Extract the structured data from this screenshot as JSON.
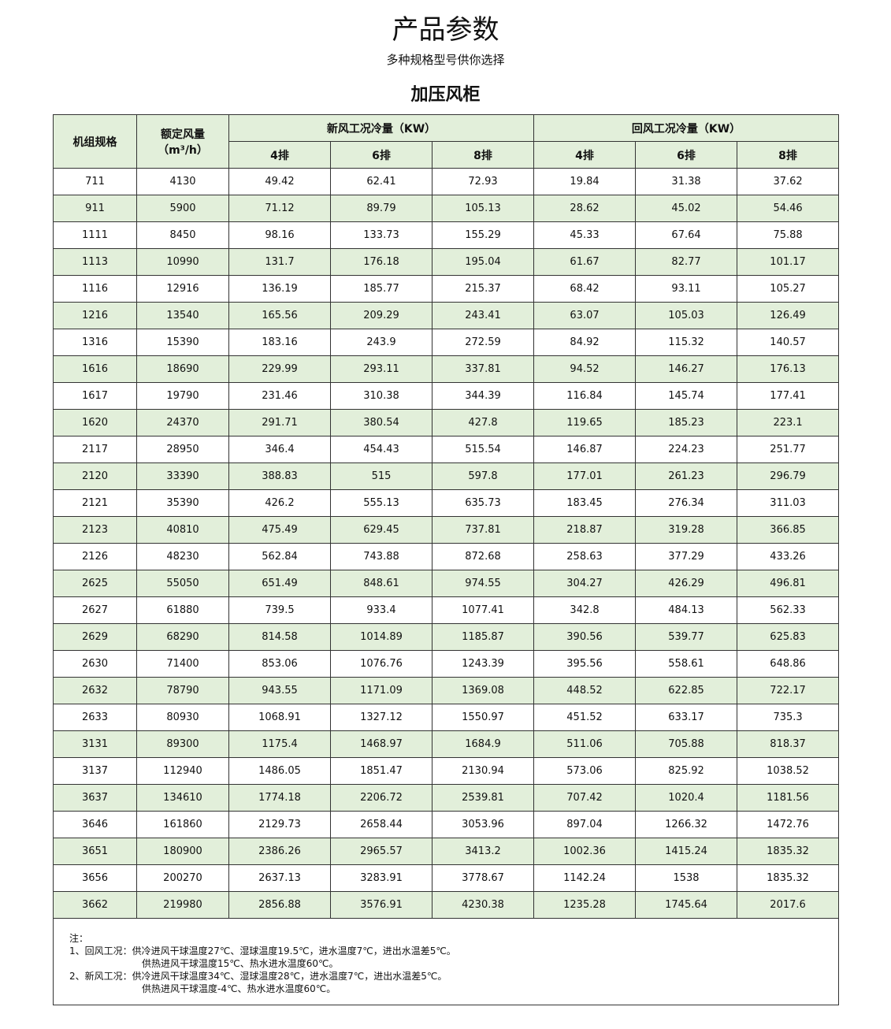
{
  "header": {
    "title": "产品参数",
    "subtitle": "多种规格型号供你选择"
  },
  "table": {
    "title": "加压风柜",
    "model_header": "机组规格",
    "airflow_header": [
      "额定风量",
      "（m³/h）"
    ],
    "groups": [
      "新风工况冷量（KW）",
      "回风工况冷量（KW）"
    ],
    "subheaders": [
      "4排",
      "6排",
      "8排",
      "4排",
      "6排",
      "8排"
    ],
    "rows": [
      [
        "711",
        "4130",
        "49.42",
        "62.41",
        "72.93",
        "19.84",
        "31.38",
        "37.62"
      ],
      [
        "911",
        "5900",
        "71.12",
        "89.79",
        "105.13",
        "28.62",
        "45.02",
        "54.46"
      ],
      [
        "1111",
        "8450",
        "98.16",
        "133.73",
        "155.29",
        "45.33",
        "67.64",
        "75.88"
      ],
      [
        "1113",
        "10990",
        "131.7",
        "176.18",
        "195.04",
        "61.67",
        "82.77",
        "101.17"
      ],
      [
        "1116",
        "12916",
        "136.19",
        "185.77",
        "215.37",
        "68.42",
        "93.11",
        "105.27"
      ],
      [
        "1216",
        "13540",
        "165.56",
        "209.29",
        "243.41",
        "63.07",
        "105.03",
        "126.49"
      ],
      [
        "1316",
        "15390",
        "183.16",
        "243.9",
        "272.59",
        "84.92",
        "115.32",
        "140.57"
      ],
      [
        "1616",
        "18690",
        "229.99",
        "293.11",
        "337.81",
        "94.52",
        "146.27",
        "176.13"
      ],
      [
        "1617",
        "19790",
        "231.46",
        "310.38",
        "344.39",
        "116.84",
        "145.74",
        "177.41"
      ],
      [
        "1620",
        "24370",
        "291.71",
        "380.54",
        "427.8",
        "119.65",
        "185.23",
        "223.1"
      ],
      [
        "2117",
        "28950",
        "346.4",
        "454.43",
        "515.54",
        "146.87",
        "224.23",
        "251.77"
      ],
      [
        "2120",
        "33390",
        "388.83",
        "515",
        "597.8",
        "177.01",
        "261.23",
        "296.79"
      ],
      [
        "2121",
        "35390",
        "426.2",
        "555.13",
        "635.73",
        "183.45",
        "276.34",
        "311.03"
      ],
      [
        "2123",
        "40810",
        "475.49",
        "629.45",
        "737.81",
        "218.87",
        "319.28",
        "366.85"
      ],
      [
        "2126",
        "48230",
        "562.84",
        "743.88",
        "872.68",
        "258.63",
        "377.29",
        "433.26"
      ],
      [
        "2625",
        "55050",
        "651.49",
        "848.61",
        "974.55",
        "304.27",
        "426.29",
        "496.81"
      ],
      [
        "2627",
        "61880",
        "739.5",
        "933.4",
        "1077.41",
        "342.8",
        "484.13",
        "562.33"
      ],
      [
        "2629",
        "68290",
        "814.58",
        "1014.89",
        "1185.87",
        "390.56",
        "539.77",
        "625.83"
      ],
      [
        "2630",
        "71400",
        "853.06",
        "1076.76",
        "1243.39",
        "395.56",
        "558.61",
        "648.86"
      ],
      [
        "2632",
        "78790",
        "943.55",
        "1171.09",
        "1369.08",
        "448.52",
        "622.85",
        "722.17"
      ],
      [
        "2633",
        "80930",
        "1068.91",
        "1327.12",
        "1550.97",
        "451.52",
        "633.17",
        "735.3"
      ],
      [
        "3131",
        "89300",
        "1175.4",
        "1468.97",
        "1684.9",
        "511.06",
        "705.88",
        "818.37"
      ],
      [
        "3137",
        "112940",
        "1486.05",
        "1851.47",
        "2130.94",
        "573.06",
        "825.92",
        "1038.52"
      ],
      [
        "3637",
        "134610",
        "1774.18",
        "2206.72",
        "2539.81",
        "707.42",
        "1020.4",
        "1181.56"
      ],
      [
        "3646",
        "161860",
        "2129.73",
        "2658.44",
        "3053.96",
        "897.04",
        "1266.32",
        "1472.76"
      ],
      [
        "3651",
        "180900",
        "2386.26",
        "2965.57",
        "3413.2",
        "1002.36",
        "1415.24",
        "1835.32"
      ],
      [
        "3656",
        "200270",
        "2637.13",
        "3283.91",
        "3778.67",
        "1142.24",
        "1538",
        "1835.32"
      ],
      [
        "3662",
        "219980",
        "2856.88",
        "3576.91",
        "4230.38",
        "1235.28",
        "1745.64",
        "2017.6"
      ]
    ],
    "notes": [
      "注：",
      "1、回风工况：供冷进风干球温度27℃、湿球温度19.5℃，进水温度7℃，进出水温差5℃。",
      "供热进风干球温度15℃、热水进水温度60℃。",
      "2、新风工况：供冷进风干球温度34℃、湿球温度28℃，进水温度7℃，进出水温差5℃。",
      "供热进风干球温度-4℃、热水进水温度60℃。"
    ]
  }
}
